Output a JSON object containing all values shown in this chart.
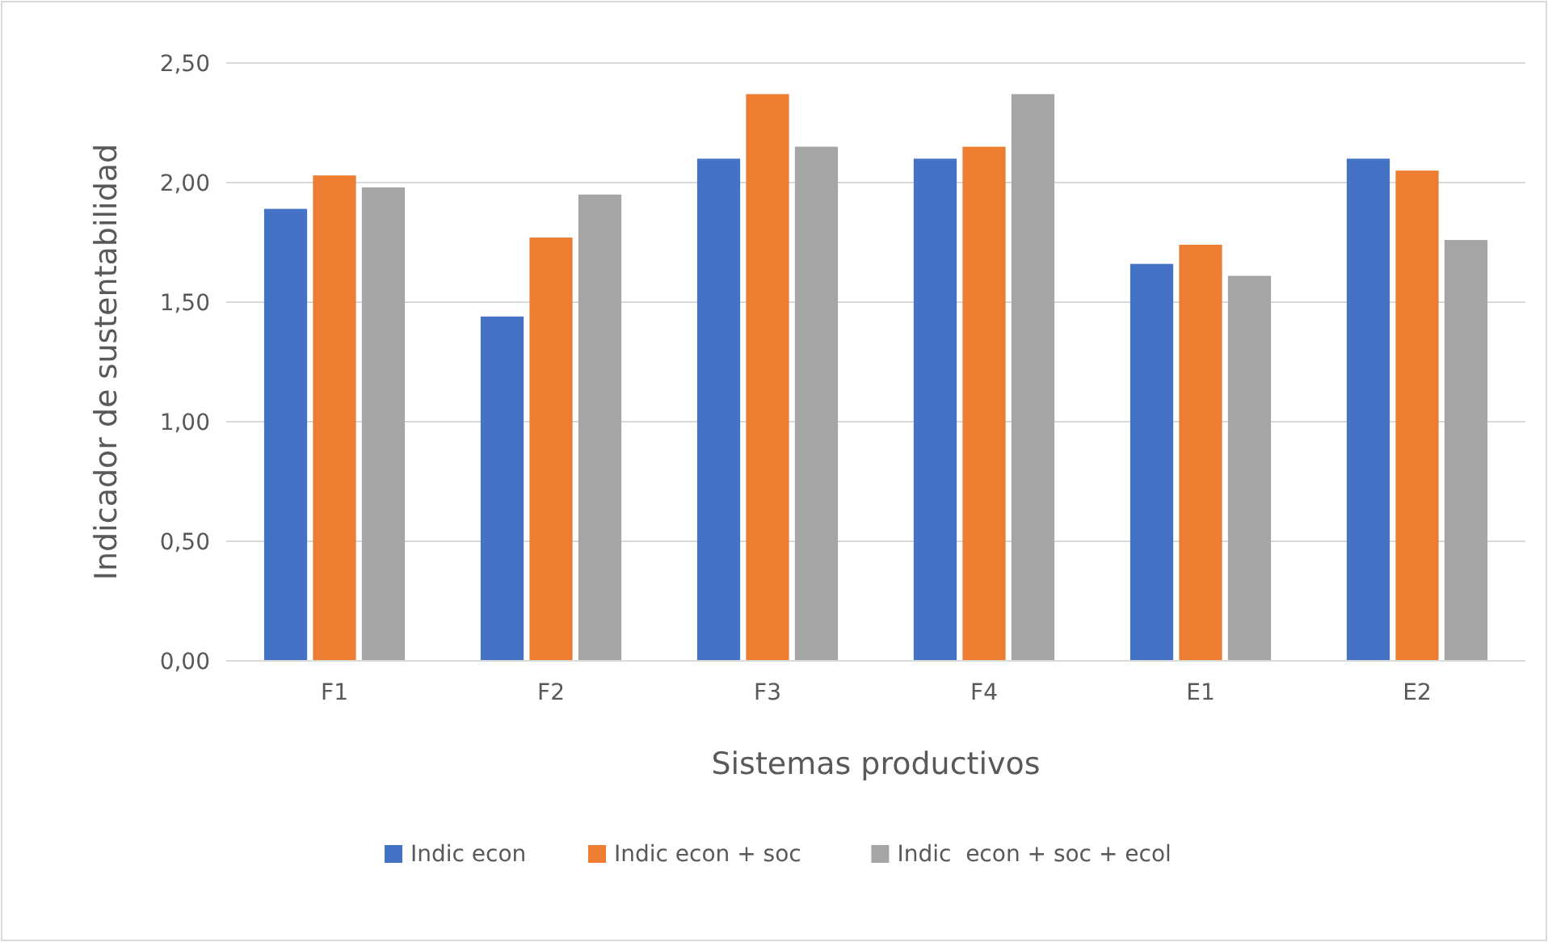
{
  "chart_data": {
    "type": "bar",
    "xlabel": "Sistemas productivos",
    "ylabel": "Indicador de sustentabilidad",
    "categories": [
      "F1",
      "F2",
      "F3",
      "F4",
      "E1",
      "E2"
    ],
    "series": [
      {
        "name": "Indic econ",
        "color": "#4472c4",
        "values": [
          1.89,
          1.44,
          2.1,
          2.1,
          1.66,
          2.1
        ]
      },
      {
        "name": "Indic econ + soc",
        "color": "#ed7d31",
        "values": [
          2.03,
          1.77,
          2.37,
          2.15,
          1.74,
          2.05
        ]
      },
      {
        "name": "Indic  econ + soc + ecol",
        "color": "#a5a5a5",
        "values": [
          1.98,
          1.95,
          2.15,
          2.37,
          1.61,
          1.76
        ]
      }
    ],
    "ylim": [
      0,
      2.5
    ],
    "yticks": [
      {
        "value": 0,
        "label": "0,00"
      },
      {
        "value": 0.5,
        "label": "0,50"
      },
      {
        "value": 1,
        "label": "1,00"
      },
      {
        "value": 1.5,
        "label": "1,50"
      },
      {
        "value": 2,
        "label": "2,00"
      },
      {
        "value": 2.5,
        "label": "2,50"
      }
    ],
    "grid": "y",
    "legend": "bottom"
  }
}
